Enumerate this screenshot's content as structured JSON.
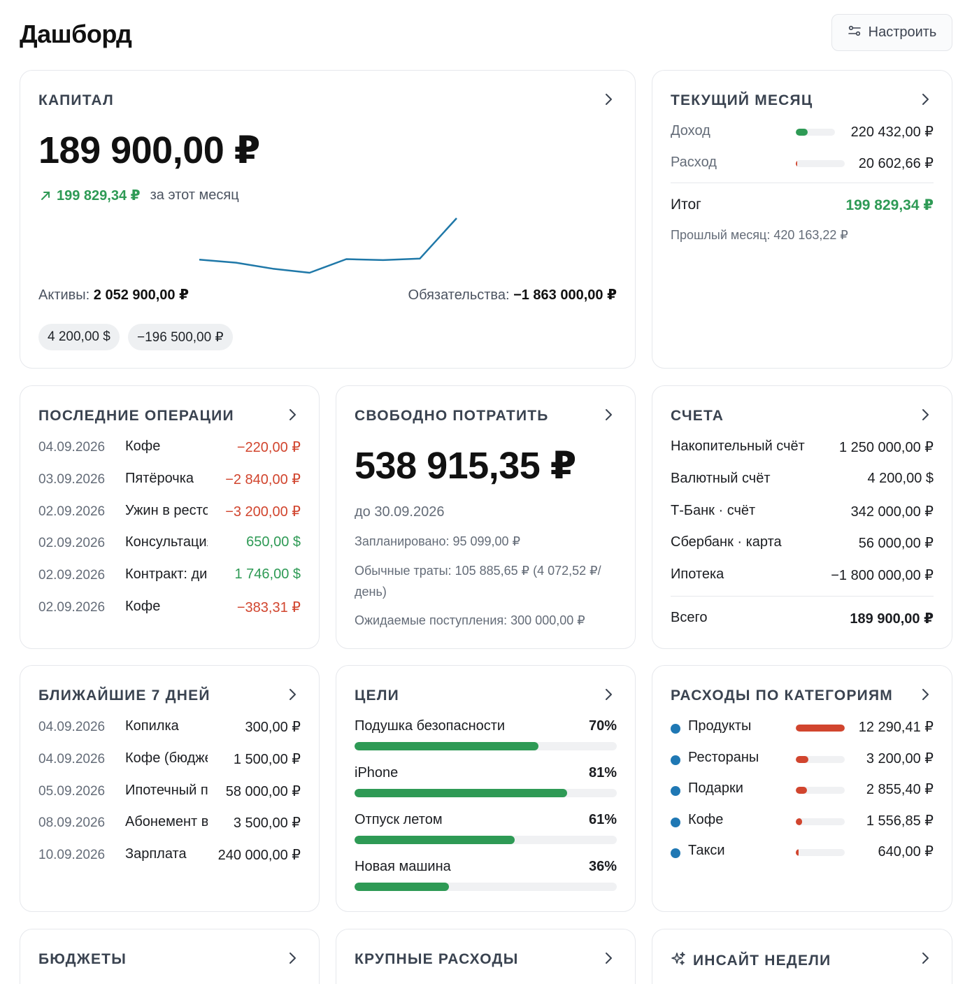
{
  "header": {
    "title": "Дашборд",
    "customize_label": "Настроить"
  },
  "capital": {
    "title": "КАПИТАЛ",
    "total": "189 900,00 ₽",
    "delta": "199 829,34 ₽",
    "delta_label": "за этот месяц",
    "assets_label": "Активы:",
    "assets_value": "2 052 900,00 ₽",
    "liabilities_label": "Обязательства:",
    "liabilities_value": "−1 863 000,00 ₽",
    "chips": [
      "4 200,00 $",
      "−196 500,00 ₽"
    ],
    "sparkline_color": "#1f78a8"
  },
  "chart_data": {
    "type": "line",
    "title": "",
    "series": [
      {
        "values": [
          189000,
          186000,
          180000,
          176000,
          189500,
          188500,
          190000,
          230000
        ]
      }
    ]
  },
  "current_month": {
    "title": "ТЕКУЩИЙ МЕСЯЦ",
    "income_label": "Доход",
    "income_value": "220 432,00 ₽",
    "income_share": 0.31,
    "expense_label": "Расход",
    "expense_value": "20 602,66 ₽",
    "expense_share": 0.03,
    "total_label": "Итог",
    "total_value": "199 829,34 ₽",
    "prev_month": "Прошлый месяц: 420 163,22 ₽"
  },
  "recent_ops": {
    "title": "ПОСЛЕДНИЕ ОПЕРАЦИИ",
    "rows": [
      {
        "date": "04.09.2026",
        "name": "Кофе",
        "amount": "−220,00 ₽",
        "sign": "neg"
      },
      {
        "date": "03.09.2026",
        "name": "Пятёрочка",
        "amount": "−2 840,00 ₽",
        "sign": "neg"
      },
      {
        "date": "02.09.2026",
        "name": "Ужин в ресторане",
        "amount": "−3 200,00 ₽",
        "sign": "neg"
      },
      {
        "date": "02.09.2026",
        "name": "Консультация, клиент",
        "amount": "650,00 $",
        "sign": "pos"
      },
      {
        "date": "02.09.2026",
        "name": "Контракт: дизайн",
        "amount": "1 746,00 $",
        "sign": "pos"
      },
      {
        "date": "02.09.2026",
        "name": "Кофе",
        "amount": "−383,31 ₽",
        "sign": "neg"
      }
    ]
  },
  "free_to_spend": {
    "title": "СВОБОДНО ПОТРАТИТЬ",
    "amount": "538 915,35 ₽",
    "until": "до 30.09.2026",
    "planned": "Запланировано: 95 099,00 ₽",
    "regular_line1": "Обычные траты: 105 885,65 ₽ (4 072,52 ₽/",
    "regular_line2": "день)",
    "expected": "Ожидаемые поступления: 300 000,00 ₽"
  },
  "accounts": {
    "title": "СЧЕТА",
    "rows": [
      {
        "name": "Накопительный счёт",
        "value": "1 250 000,00 ₽"
      },
      {
        "name": "Валютный счёт",
        "value": "4 200,00 $"
      },
      {
        "name": "Т-Банк · счёт",
        "value": "342 000,00 ₽"
      },
      {
        "name": "Сбербанк · карта",
        "value": "56 000,00 ₽"
      },
      {
        "name": "Ипотека",
        "value": "−1 800 000,00 ₽"
      }
    ],
    "total_label": "Всего",
    "total_value": "189 900,00 ₽"
  },
  "next7": {
    "title": "БЛИЖАЙШИЕ 7 ДНЕЙ",
    "rows": [
      {
        "date": "04.09.2026",
        "name": "Копилка",
        "amount": "300,00 ₽"
      },
      {
        "date": "04.09.2026",
        "name": "Кофе (бюджет)",
        "amount": "1 500,00 ₽"
      },
      {
        "date": "05.09.2026",
        "name": "Ипотечный платёж",
        "amount": "58 000,00 ₽"
      },
      {
        "date": "08.09.2026",
        "name": "Абонемент в зал",
        "amount": "3 500,00 ₽"
      },
      {
        "date": "10.09.2026",
        "name": "Зарплата",
        "amount": "240 000,00 ₽"
      }
    ]
  },
  "goals": {
    "title": "ЦЕЛИ",
    "items": [
      {
        "name": "Подушка безопасности",
        "percent": "70%",
        "progress": 0.7
      },
      {
        "name": "iPhone",
        "percent": "81%",
        "progress": 0.81
      },
      {
        "name": "Отпуск летом",
        "percent": "61%",
        "progress": 0.61
      },
      {
        "name": "Новая машина",
        "percent": "36%",
        "progress": 0.36
      }
    ]
  },
  "categories": {
    "title": "РАСХОДЫ ПО КАТЕГОРИЯМ",
    "items": [
      {
        "name": "Продукты",
        "value": "12 290,41 ₽",
        "share": 1.0
      },
      {
        "name": "Рестораны",
        "value": "3 200,00 ₽",
        "share": 0.26
      },
      {
        "name": "Подарки",
        "value": "2 855,40 ₽",
        "share": 0.23
      },
      {
        "name": "Кофе",
        "value": "1 556,85 ₽",
        "share": 0.13
      },
      {
        "name": "Такси",
        "value": "640,00 ₽",
        "share": 0.05
      }
    ]
  },
  "bottom": {
    "budgets_title": "БЮДЖЕТЫ",
    "big_expenses_title": "КРУПНЫЕ РАСХОДЫ",
    "insight_title": "ИНСАЙТ НЕДЕЛИ"
  },
  "colors": {
    "positive": "#2e9a55",
    "negative": "#d1452e",
    "category_dot": "#1f78b4"
  }
}
